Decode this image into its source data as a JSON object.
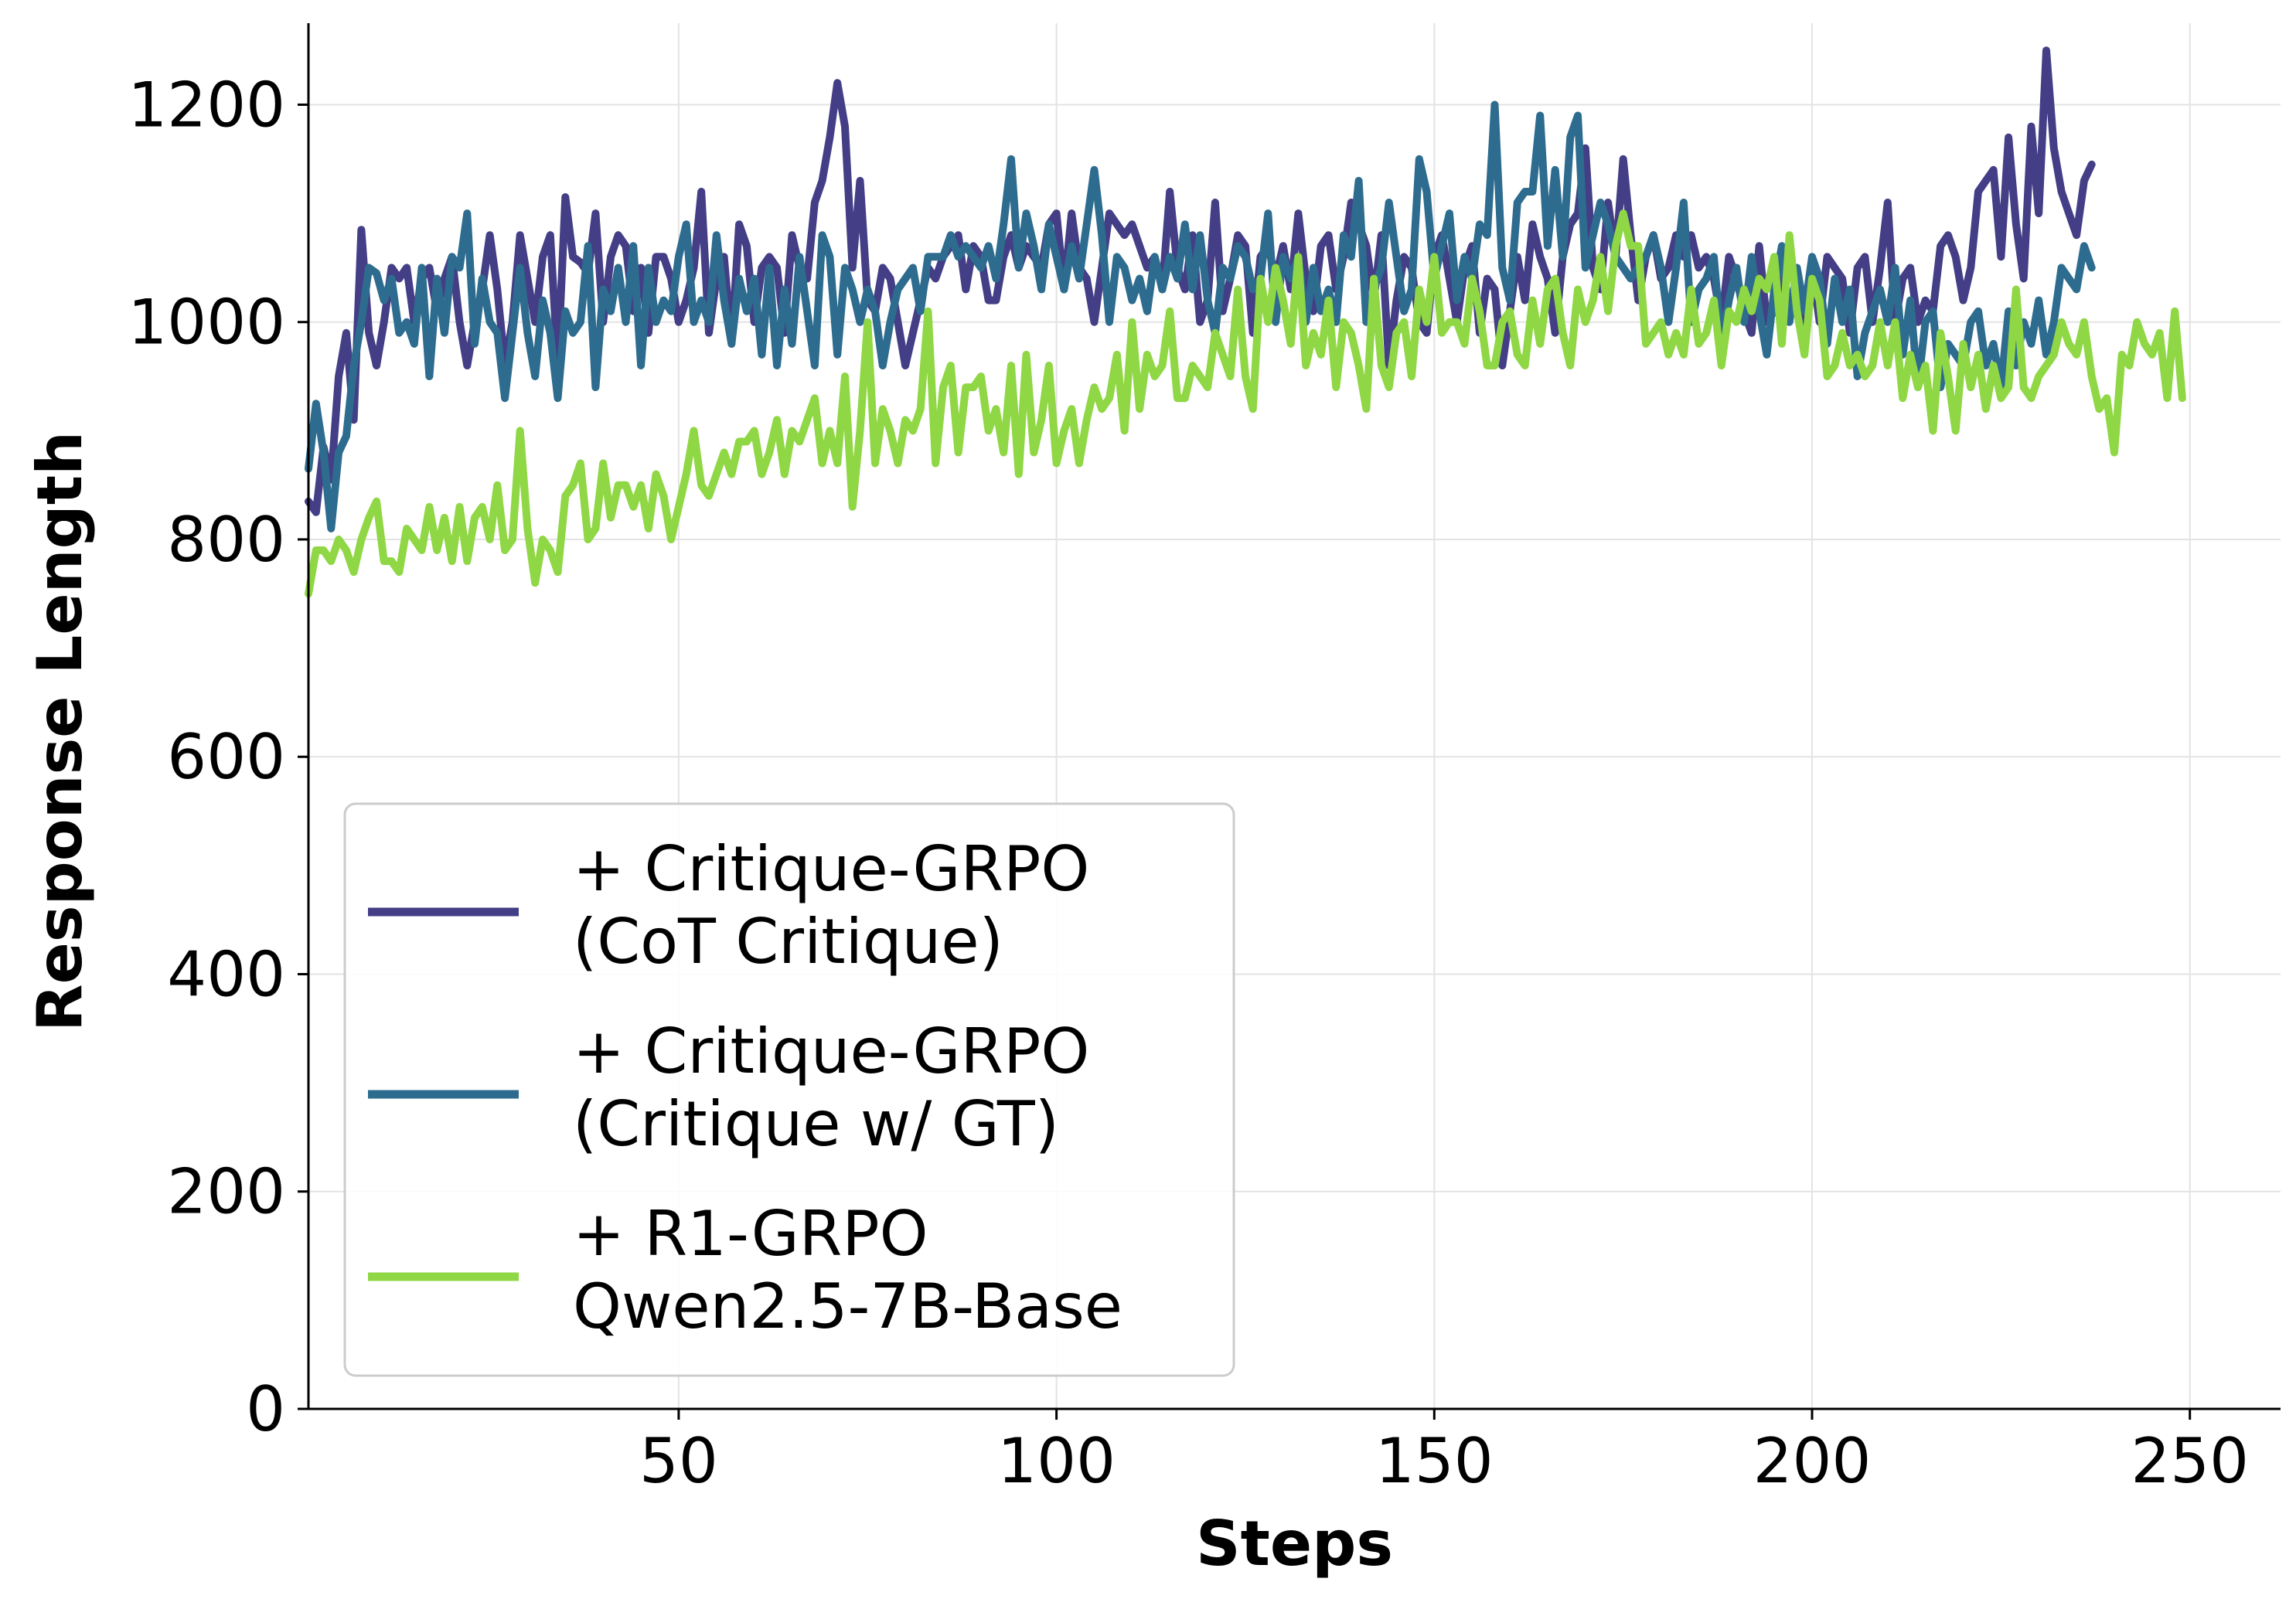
{
  "chart_data": {
    "type": "line",
    "xlabel": "Steps",
    "ylabel": "Response Length",
    "xlim": [
      1,
      262
    ],
    "ylim": [
      0,
      1275
    ],
    "xticks": [
      50,
      100,
      150,
      200,
      250
    ],
    "yticks": [
      0,
      200,
      400,
      600,
      800,
      1000,
      1200
    ],
    "grid": true,
    "legend_position": "lower-left",
    "series": [
      {
        "name_lines": [
          "+ Critique-GRPO",
          "(CoT Critique)"
        ],
        "color": "#433e85",
        "values": [
          835,
          825,
          885,
          855,
          950,
          990,
          910,
          1085,
          990,
          960,
          1000,
          1050,
          1040,
          1050,
          1000,
          1040,
          1050,
          1010,
          1040,
          1060,
          1000,
          960,
          1000,
          1030,
          1080,
          1030,
          960,
          1000,
          1080,
          1040,
          1000,
          1060,
          1080,
          960,
          1115,
          1060,
          1055,
          1045,
          1100,
          1000,
          1060,
          1080,
          1070,
          1010,
          1050,
          990,
          1060,
          1060,
          1040,
          1000,
          1020,
          1050,
          1120,
          990,
          1040,
          1060,
          980,
          1090,
          1070,
          1000,
          1050,
          1060,
          1050,
          990,
          1080,
          1050,
          1040,
          1110,
          1130,
          1170,
          1220,
          1180,
          1050,
          1130,
          1020,
          1010,
          1050,
          1040,
          1000,
          960,
          990,
          1020,
          1050,
          1040,
          1060,
          1070,
          1080,
          1030,
          1070,
          1060,
          1020,
          1020,
          1060,
          1080,
          1050,
          1070,
          1060,
          1050,
          1090,
          1100,
          1030,
          1100,
          1050,
          1040,
          1000,
          1050,
          1100,
          1090,
          1080,
          1090,
          1070,
          1050,
          1060,
          1030,
          1120,
          1050,
          1030,
          1080,
          1000,
          1020,
          1110,
          1010,
          1040,
          1080,
          1070,
          990,
          1060,
          1070,
          1040,
          1070,
          1030,
          1100,
          1040,
          1010,
          1070,
          1080,
          1030,
          1060,
          1110,
          1090,
          1070,
          1020,
          1080,
          960,
          1020,
          1060,
          1050,
          1000,
          990,
          1060,
          1080,
          1040,
          1000,
          1050,
          1070,
          990,
          1040,
          1030,
          960,
          1010,
          1060,
          1020,
          1090,
          1060,
          1040,
          990,
          1060,
          1090,
          1100,
          1160,
          1050,
          1030,
          1110,
          1060,
          1150,
          1080,
          1020,
          1060,
          1080,
          1040,
          1050,
          1080,
          1060,
          1080,
          1050,
          1060,
          1040,
          1000,
          1060,
          1040,
          1010,
          990,
          1070,
          1000,
          1010,
          1050,
          1060,
          1030,
          990,
          1050,
          1000,
          1060,
          1050,
          1040,
          990,
          1050,
          1060,
          1000,
          1050,
          1110,
          1000,
          1040,
          1050,
          1000,
          1020,
          1010,
          1070,
          1080,
          1060,
          1020,
          1050,
          1120,
          1130,
          1140,
          1060,
          1170,
          1090,
          1040,
          1180,
          1100,
          1250,
          1160,
          1120,
          1100,
          1080,
          1130,
          1145
        ],
        "values_note": ""
      },
      {
        "name_lines": [
          "+ Critique-GRPO",
          "(Critique w/ GT)"
        ],
        "color": "#2d6c8e",
        "values": [
          865,
          925,
          880,
          810,
          880,
          895,
          960,
          1000,
          1050,
          1045,
          1020,
          1040,
          990,
          1000,
          980,
          1050,
          950,
          1040,
          990,
          1060,
          1050,
          1100,
          980,
          1040,
          1000,
          990,
          930,
          990,
          1050,
          990,
          950,
          1020,
          990,
          930,
          1010,
          990,
          1000,
          1070,
          940,
          1030,
          1010,
          1050,
          1000,
          1070,
          960,
          1050,
          1000,
          1020,
          1010,
          1060,
          1090,
          1000,
          1020,
          1000,
          1080,
          1020,
          980,
          1040,
          1010,
          1040,
          970,
          1050,
          960,
          1030,
          980,
          1060,
          1010,
          960,
          1080,
          1060,
          970,
          1050,
          1030,
          1000,
          1030,
          1010,
          960,
          1000,
          1030,
          1040,
          1050,
          1010,
          1060,
          1060,
          1060,
          1080,
          1060,
          1070,
          1060,
          1050,
          1070,
          1040,
          1090,
          1150,
          1050,
          1100,
          1070,
          1030,
          1090,
          1060,
          1030,
          1070,
          1040,
          1090,
          1140,
          1080,
          1000,
          1060,
          1050,
          1020,
          1040,
          1010,
          1060,
          1030,
          1060,
          1040,
          1090,
          1030,
          1080,
          1020,
          990,
          1050,
          1040,
          1070,
          1060,
          1030,
          1040,
          1100,
          1000,
          1060,
          1040,
          1060,
          1000,
          1050,
          1010,
          1030,
          1000,
          1080,
          1060,
          1130,
          1000,
          1030,
          1050,
          1110,
          1060,
          1010,
          1030,
          1150,
          1120,
          1040,
          1070,
          1100,
          1020,
          1060,
          1040,
          1090,
          1080,
          1200,
          1050,
          1020,
          1110,
          1120,
          1120,
          1190,
          1070,
          1140,
          1060,
          1170,
          1190,
          1050,
          1080,
          1110,
          1090,
          1060,
          1050,
          1040,
          1050,
          1060,
          1080,
          1050,
          1000,
          1050,
          1110,
          1000,
          1030,
          1040,
          1060,
          980,
          1020,
          1050,
          1000,
          1060,
          1010,
          970,
          1030,
          1070,
          1000,
          1050,
          1010,
          1060,
          1040,
          980,
          1040,
          1000,
          1030,
          950,
          990,
          1010,
          1030,
          1000,
          1050,
          970,
          1020,
          940,
          1000,
          1010,
          940,
          980,
          970,
          960,
          1000,
          1010,
          960,
          980,
          940,
          1010,
          960,
          1000,
          980,
          1020,
          970,
          1000,
          1050,
          1040,
          1030,
          1070,
          1050
        ]
      },
      {
        "name_lines": [
          "+ R1-GRPO",
          "Qwen2.5-7B-Base"
        ],
        "color": "#8fd744",
        "values": [
          750,
          790,
          790,
          780,
          800,
          790,
          770,
          800,
          820,
          835,
          780,
          780,
          770,
          810,
          800,
          790,
          830,
          790,
          820,
          780,
          830,
          780,
          820,
          830,
          800,
          850,
          790,
          800,
          900,
          810,
          760,
          800,
          790,
          770,
          840,
          850,
          870,
          800,
          810,
          870,
          820,
          850,
          850,
          830,
          850,
          810,
          860,
          840,
          800,
          830,
          860,
          900,
          850,
          840,
          860,
          880,
          860,
          890,
          890,
          900,
          860,
          880,
          910,
          860,
          900,
          890,
          910,
          930,
          870,
          900,
          870,
          950,
          830,
          900,
          1000,
          870,
          920,
          900,
          870,
          910,
          900,
          920,
          1010,
          870,
          940,
          960,
          880,
          940,
          940,
          950,
          900,
          920,
          880,
          960,
          860,
          970,
          880,
          910,
          960,
          870,
          900,
          920,
          870,
          910,
          940,
          920,
          930,
          970,
          900,
          1000,
          920,
          970,
          950,
          960,
          1010,
          930,
          930,
          960,
          950,
          940,
          990,
          970,
          950,
          1030,
          950,
          920,
          1040,
          1000,
          1050,
          1020,
          980,
          1060,
          960,
          990,
          970,
          1020,
          940,
          1000,
          990,
          960,
          920,
          1040,
          960,
          940,
          990,
          1000,
          950,
          1030,
          1000,
          1060,
          990,
          1000,
          1000,
          980,
          1040,
          1010,
          960,
          960,
          1000,
          1010,
          970,
          960,
          1020,
          980,
          1030,
          1040,
          990,
          960,
          1030,
          1000,
          1020,
          1060,
          1010,
          1070,
          1100,
          1070,
          1070,
          980,
          990,
          1000,
          970,
          990,
          970,
          1030,
          980,
          990,
          1020,
          960,
          1010,
          1000,
          1030,
          1010,
          1040,
          1030,
          1060,
          980,
          1080,
          1010,
          970,
          1040,
          1020,
          950,
          960,
          990,
          960,
          970,
          950,
          960,
          1000,
          960,
          1000,
          930,
          970,
          940,
          960,
          900,
          990,
          950,
          900,
          980,
          940,
          970,
          920,
          960,
          930,
          940,
          1030,
          940,
          930,
          950,
          960,
          970,
          1000,
          980,
          970,
          1000,
          950,
          920,
          930,
          880,
          970,
          960,
          1000,
          980,
          970,
          990,
          930,
          1010,
          930
        ]
      }
    ]
  }
}
